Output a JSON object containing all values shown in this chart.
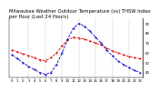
{
  "title": "Milwaukee Weather Outdoor Temperature (vs) THSW Index per Hour (Last 24 Hours)",
  "title_fontsize": 3.8,
  "background_color": "#ffffff",
  "grid_color": "#aaaaaa",
  "hours": [
    0,
    1,
    2,
    3,
    4,
    5,
    6,
    7,
    8,
    9,
    10,
    11,
    12,
    13,
    14,
    15,
    16,
    17,
    18,
    19,
    20,
    21,
    22,
    23
  ],
  "temp": [
    63,
    61,
    59,
    57,
    55,
    53,
    52,
    55,
    60,
    67,
    73,
    76,
    75,
    74,
    72,
    70,
    68,
    65,
    62,
    60,
    58,
    56,
    55,
    54
  ],
  "thsw": [
    58,
    54,
    50,
    46,
    43,
    40,
    38,
    40,
    48,
    60,
    74,
    85,
    90,
    87,
    82,
    76,
    70,
    63,
    57,
    52,
    48,
    45,
    42,
    40
  ],
  "temp_color": "#dd0000",
  "thsw_color": "#0000cc",
  "ylim": [
    35,
    95
  ],
  "tick_fontsize": 2.8,
  "line_width": 0.6,
  "marker_size": 1.0,
  "grid_vlines": [
    3,
    6,
    9,
    12,
    15,
    18,
    21
  ],
  "yticks": [
    40,
    50,
    60,
    70,
    80,
    90
  ],
  "ytick_labels": [
    "40",
    "50",
    "60",
    "70",
    "80",
    "90"
  ]
}
